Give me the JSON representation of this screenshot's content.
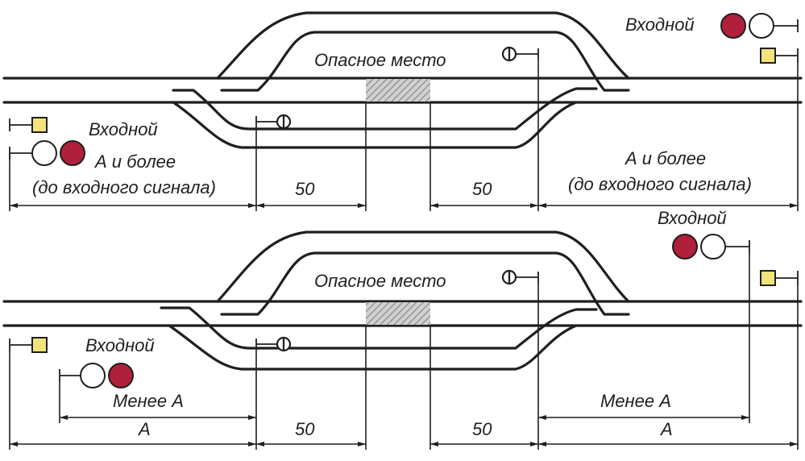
{
  "colors": {
    "track": "#1f1f1f",
    "signal_red": "#b0203a",
    "signal_yellow": "#f2e37a",
    "hatch": "#8a8a8a"
  },
  "top": {
    "danger_label": "Опасное место",
    "entry_signal_right": "Входной",
    "entry_signal_left": "Входной",
    "left_dist_line1": "А и более",
    "left_dist_line2": "(до входного сигнала)",
    "right_dist_line1": "А и более",
    "right_dist_line2": "(до входного сигнала)",
    "dim_50_left": "50",
    "dim_50_right": "50"
  },
  "bottom": {
    "danger_label": "Опасное место",
    "entry_signal_right": "Входной",
    "entry_signal_left": "Входной",
    "left_less": "Менее А",
    "left_a": "А",
    "right_less": "Менее А",
    "right_a": "А",
    "dim_50_left": "50",
    "dim_50_right": "50"
  }
}
